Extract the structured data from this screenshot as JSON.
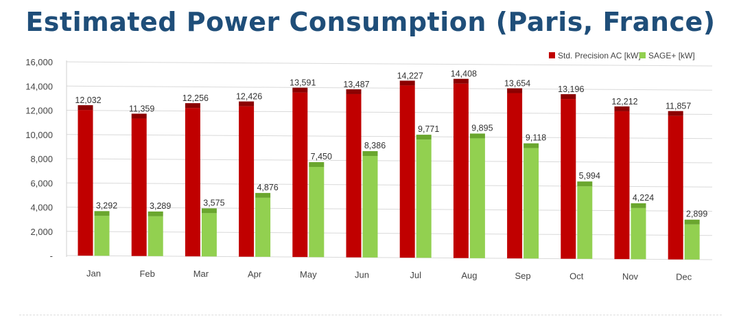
{
  "title": "Estimated Power Consumption (Paris, France)",
  "chart_data": {
    "type": "bar",
    "title": "Estimated Power Consumption (Paris, France)",
    "categories": [
      "Jan",
      "Feb",
      "Mar",
      "Apr",
      "May",
      "Jun",
      "Jul",
      "Aug",
      "Sep",
      "Oct",
      "Nov",
      "Dec"
    ],
    "series": [
      {
        "name": "Std. Precision AC [kW]",
        "color": "#c00000",
        "values": [
          12032,
          11359,
          12256,
          12426,
          13591,
          13487,
          14227,
          14408,
          13654,
          13196,
          12212,
          11857
        ],
        "labels": [
          "12,032",
          "11,359",
          "12,256",
          "12,426",
          "13,591",
          "13,487",
          "14,227",
          "14,408",
          "13,654",
          "13,196",
          "12,212",
          "11,857"
        ]
      },
      {
        "name": "SAGE+ [kW]",
        "color": "#92d050",
        "values": [
          3292,
          3289,
          3575,
          4876,
          7450,
          8386,
          9771,
          9895,
          9118,
          5994,
          4224,
          2899
        ],
        "labels": [
          "3,292",
          "3,289",
          "3,575",
          "4,876",
          "7,450",
          "8,386",
          "9,771",
          "9,895",
          "9,118",
          "5,994",
          "4,224",
          "2,899"
        ]
      }
    ],
    "yticks": [
      "-",
      "2,000",
      "4,000",
      "6,000",
      "8,000",
      "10,000",
      "12,000",
      "14,000",
      "16,000"
    ],
    "ylim": [
      0,
      16000
    ],
    "legend": "top-right",
    "grid": true,
    "style": "3d-column"
  }
}
